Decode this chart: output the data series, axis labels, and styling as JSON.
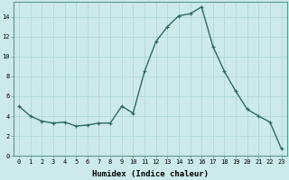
{
  "x": [
    0,
    1,
    2,
    3,
    4,
    5,
    6,
    7,
    8,
    9,
    10,
    11,
    12,
    13,
    14,
    15,
    16,
    17,
    18,
    19,
    20,
    21,
    22,
    23
  ],
  "y": [
    5.0,
    4.0,
    3.5,
    3.3,
    3.4,
    3.0,
    3.1,
    3.3,
    3.3,
    5.0,
    4.3,
    8.5,
    11.5,
    13.0,
    14.1,
    14.3,
    15.0,
    11.0,
    8.5,
    6.5,
    4.7,
    4.0,
    3.4,
    0.7
  ],
  "line_color": "#2d6b5e",
  "marker": "+",
  "marker_size": 3,
  "marker_linewidth": 0.9,
  "line_width": 1.0,
  "bg_color": "#cceaea",
  "grid_color": "#b0d8d8",
  "xlabel": "Humidex (Indice chaleur)",
  "ylabel": "",
  "xlim": [
    -0.5,
    23.5
  ],
  "ylim": [
    0,
    15.5
  ],
  "yticks": [
    0,
    2,
    4,
    6,
    8,
    10,
    12,
    14
  ],
  "xticks": [
    0,
    1,
    2,
    3,
    4,
    5,
    6,
    7,
    8,
    9,
    10,
    11,
    12,
    13,
    14,
    15,
    16,
    17,
    18,
    19,
    20,
    21,
    22,
    23
  ],
  "axis_label_fontsize": 6.5,
  "tick_fontsize": 5.0
}
